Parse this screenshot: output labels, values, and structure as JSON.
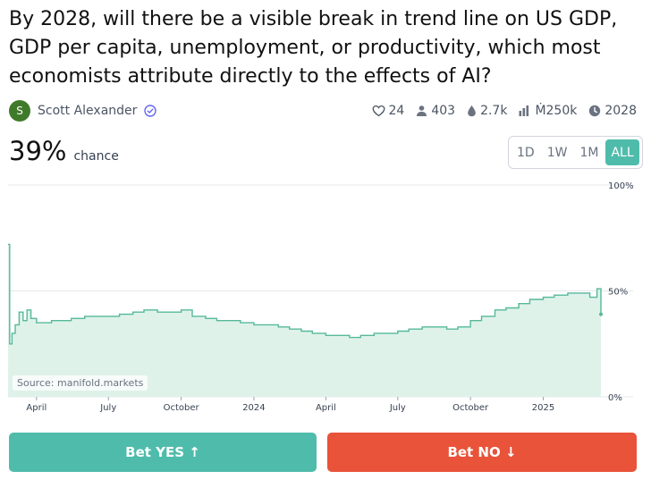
{
  "question": {
    "title": "By 2028, will there be a visible break in trend line on US GDP, GDP per capita, unemployment, or productivity, which most economists attribute directly to the effects of AI?"
  },
  "creator": {
    "avatar_letter": "S",
    "name": "Scott Alexander",
    "icon": "verified-badge-icon"
  },
  "stats": {
    "likes": "24",
    "traders": "403",
    "liquidity": "2.7k",
    "volume": "Ṁ250k",
    "close": "2028"
  },
  "probability": {
    "value": "39%",
    "label": "chance"
  },
  "range_tabs": [
    "1D",
    "1W",
    "1M",
    "ALL"
  ],
  "active_range": "ALL",
  "source": "Source: manifold.markets",
  "buttons": {
    "yes": "Bet YES ↑",
    "no": "Bet NO ↓"
  },
  "colors": {
    "accent": "#4fbcab",
    "line": "#55b99a",
    "fill": "#dff2ea",
    "no": "#e8533a"
  },
  "chart_data": {
    "type": "area",
    "title": "",
    "xlabel": "",
    "ylabel": "",
    "ylim": [
      0,
      100
    ],
    "y_ticks": [
      "100%",
      "50%",
      "0%"
    ],
    "y_tick_values": [
      100,
      50,
      0
    ],
    "x_tick_labels": [
      "April",
      "July",
      "October",
      "2024",
      "April",
      "July",
      "October",
      "2025"
    ],
    "x_tick_dates": [
      "2023-04-01",
      "2023-07-01",
      "2023-10-01",
      "2024-01-01",
      "2024-04-01",
      "2024-07-01",
      "2024-10-01",
      "2025-01-01"
    ],
    "xlim": [
      "2023-02-24",
      "2025-03-15"
    ],
    "series": [
      {
        "x": [
          "2023-02-24",
          "2023-02-26",
          "2023-03-01",
          "2023-03-05",
          "2023-03-10",
          "2023-03-15",
          "2023-03-20",
          "2023-03-25",
          "2023-04-01",
          "2023-04-10",
          "2023-04-20",
          "2023-05-01",
          "2023-05-15",
          "2023-06-01",
          "2023-06-15",
          "2023-07-01",
          "2023-07-15",
          "2023-08-01",
          "2023-08-15",
          "2023-09-01",
          "2023-09-15",
          "2023-10-01",
          "2023-10-15",
          "2023-11-01",
          "2023-11-15",
          "2023-12-01",
          "2023-12-15",
          "2024-01-01",
          "2024-01-15",
          "2024-02-01",
          "2024-02-15",
          "2024-03-01",
          "2024-03-15",
          "2024-04-01",
          "2024-04-15",
          "2024-05-01",
          "2024-05-15",
          "2024-06-01",
          "2024-06-15",
          "2024-07-01",
          "2024-07-15",
          "2024-08-01",
          "2024-08-15",
          "2024-09-01",
          "2024-09-15",
          "2024-10-01",
          "2024-10-15",
          "2024-11-01",
          "2024-11-15",
          "2024-12-01",
          "2024-12-15",
          "2025-01-01",
          "2025-01-15",
          "2025-02-01",
          "2025-02-15",
          "2025-03-01",
          "2025-03-10",
          "2025-03-15"
        ],
        "y": [
          72,
          25,
          30,
          34,
          40,
          36,
          41,
          37,
          35,
          35,
          36,
          36,
          37,
          38,
          38,
          38,
          39,
          40,
          41,
          40,
          40,
          41,
          38,
          37,
          36,
          36,
          35,
          34,
          34,
          33,
          32,
          31,
          30,
          29,
          29,
          28,
          29,
          30,
          30,
          31,
          32,
          33,
          33,
          32,
          33,
          36,
          38,
          41,
          42,
          44,
          46,
          47,
          48,
          49,
          49,
          47,
          51,
          39
        ]
      }
    ]
  }
}
